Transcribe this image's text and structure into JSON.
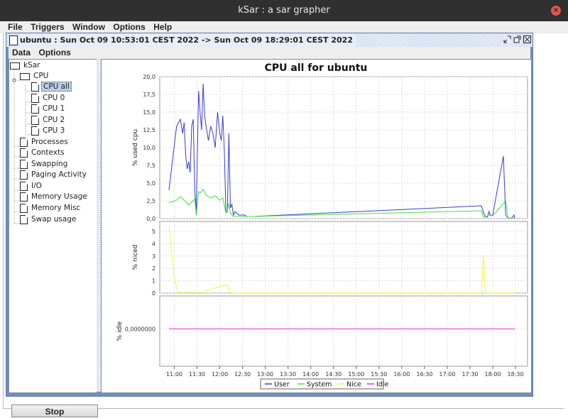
{
  "window": {
    "title": "kSar : a sar grapher",
    "close_label": "×"
  },
  "menubar": {
    "items": [
      "File",
      "Triggers",
      "Window",
      "Options",
      "Help"
    ]
  },
  "internal_frame": {
    "title": "ubuntu : Sun Oct 09 10:53:01 CEST 2022 -> Sun Oct 09 18:29:01 CEST 2022",
    "menu": [
      "Data",
      "Options"
    ]
  },
  "tree": {
    "root": "kSar",
    "cpu_group": "CPU",
    "cpu_items": [
      "CPU all",
      "CPU 0",
      "CPU 1",
      "CPU 2",
      "CPU 3"
    ],
    "selected": "CPU all",
    "other_items": [
      "Processes",
      "Contexts",
      "Swapping",
      "Paging Activity",
      "I/O",
      "Memory Usage",
      "Memory Misc",
      "Swap usage"
    ]
  },
  "stop_label": "Stop",
  "chart_data": {
    "type": "line",
    "title": "CPU all for ubuntu",
    "x_ticks": [
      "11:00",
      "11:30",
      "12:00",
      "12:30",
      "13:00",
      "13:30",
      "14:00",
      "14:30",
      "15:00",
      "15:30",
      "16:00",
      "16:30",
      "17:00",
      "17:30",
      "18:00",
      "18:30"
    ],
    "x_range": [
      "10:53",
      "18:29"
    ],
    "grid": true,
    "legend_position": "bottom",
    "legend": [
      {
        "name": "User",
        "color": "#3a3ad6"
      },
      {
        "name": "System",
        "color": "#44e044"
      },
      {
        "name": "Nice",
        "color": "#f4f44a"
      },
      {
        "name": "Idle",
        "color": "#e030e0"
      }
    ],
    "subplots": [
      {
        "ylabel": "% used cpu",
        "ylim": [
          0,
          20
        ],
        "y_ticks": [
          "0,0",
          "2,5",
          "5,0",
          "7,5",
          "10,0",
          "12,5",
          "15,0",
          "17,5",
          "20,0"
        ],
        "series": [
          {
            "name": "User",
            "color": "#3a3ad6",
            "x": [
              "10:53",
              "11:03",
              "11:08",
              "11:11",
              "11:13",
              "11:15",
              "11:17",
              "11:19",
              "11:21",
              "11:23",
              "11:25",
              "11:27",
              "11:29",
              "11:32",
              "11:34",
              "11:36",
              "11:38",
              "11:40",
              "11:42",
              "11:45",
              "11:48",
              "11:51",
              "11:54",
              "11:57",
              "12:00",
              "12:02",
              "12:04",
              "12:06",
              "12:08",
              "12:10",
              "12:12",
              "12:14",
              "12:16",
              "12:18",
              "12:20",
              "12:22",
              "12:25",
              "12:28",
              "12:32",
              "12:36",
              "12:40",
              "12:45",
              "17:45",
              "17:48",
              "17:50",
              "17:53",
              "17:55",
              "17:57",
              "18:00",
              "18:14",
              "18:17",
              "18:20",
              "18:25",
              "18:28",
              "18:29"
            ],
            "y": [
              4,
              13,
              14,
              12,
              13.5,
              9,
              7,
              8,
              6.5,
              13,
              14,
              4,
              1,
              18,
              15,
              12.5,
              19,
              14.5,
              13,
              11,
              13,
              12,
              10,
              15,
              12,
              11,
              14.5,
              9.5,
              1,
              1,
              12,
              1.5,
              2,
              0.5,
              1,
              0.8,
              0.5,
              0.5,
              0.5,
              0.3,
              0.3,
              0.3,
              1.8,
              0.8,
              0.3,
              0.2,
              1,
              0.4,
              0.5,
              8.8,
              0.5,
              0.1,
              0.1,
              0.5,
              0.1
            ]
          },
          {
            "name": "System",
            "color": "#44e044",
            "x": [
              "10:53",
              "11:03",
              "11:08",
              "11:11",
              "11:15",
              "11:19",
              "11:23",
              "11:27",
              "11:29",
              "11:32",
              "11:34",
              "11:38",
              "11:42",
              "11:48",
              "11:54",
              "12:00",
              "12:04",
              "12:08",
              "12:10",
              "12:12",
              "12:14",
              "12:18",
              "12:25",
              "12:45",
              "17:45",
              "17:48",
              "17:50",
              "17:55",
              "18:00",
              "18:17",
              "18:20",
              "18:29"
            ],
            "y": [
              2.2,
              2.6,
              3.1,
              2.8,
              2.4,
              1.9,
              2.3,
              2.8,
              0.4,
              3.8,
              3.6,
              4.1,
              3.3,
              2.9,
              3.2,
              2.6,
              2.9,
              0.8,
              0.9,
              2.2,
              0.7,
              0.3,
              0.3,
              0.3,
              1.1,
              0.2,
              0.2,
              0.5,
              0.4,
              2.5,
              0.1,
              0.1
            ]
          }
        ]
      },
      {
        "ylabel": "% niced",
        "ylim": [
          0,
          5.8
        ],
        "y_ticks": [
          "0",
          "1",
          "2",
          "3",
          "4",
          "5"
        ],
        "series": [
          {
            "name": "Nice",
            "color": "#f4f44a",
            "x": [
              "10:53",
              "11:00",
              "11:05",
              "11:35",
              "12:10",
              "12:12",
              "12:16",
              "17:45",
              "17:48",
              "17:50",
              "17:52",
              "17:55",
              "18:29"
            ],
            "y": [
              5.4,
              1.2,
              0.05,
              0.05,
              0.7,
              0.1,
              0.02,
              0.02,
              3.1,
              0.02,
              0.02,
              0.02,
              0.02
            ]
          }
        ]
      },
      {
        "ylabel": "% idle",
        "y_ticks": [
          "0,0000000"
        ],
        "series": [
          {
            "name": "Idle",
            "color": "#e030e0",
            "x": [
              "10:53",
              "18:29"
            ],
            "y": [
              0,
              0
            ]
          }
        ]
      }
    ]
  }
}
